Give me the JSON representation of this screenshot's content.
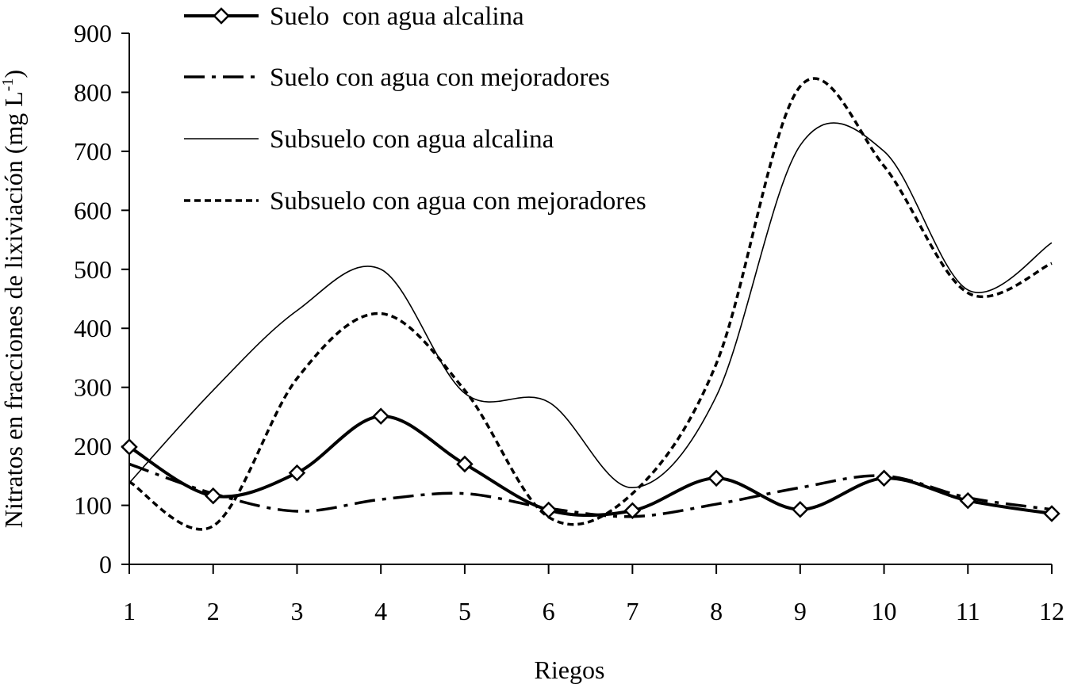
{
  "chart_data": {
    "type": "line",
    "title": "",
    "xlabel": "Riegos",
    "ylabel_main": "Nitratos en fracciones de lixiviación (mg L",
    "ylabel_sup": "-1",
    "ylabel_close": ")",
    "ylim": [
      0,
      900
    ],
    "yticks": [
      0,
      100,
      200,
      300,
      400,
      500,
      600,
      700,
      800,
      900
    ],
    "categories": [
      "1",
      "2",
      "3",
      "4",
      "5",
      "6",
      "7",
      "8",
      "9",
      "10",
      "11",
      "12"
    ],
    "grid": false,
    "legend_position": "top",
    "series": [
      {
        "name": "Suelo  con agua alcalina",
        "style": "solid-bold-diamond",
        "values": [
          199,
          116,
          155,
          251,
          170,
          92,
          91,
          146,
          93,
          146,
          108,
          86
        ]
      },
      {
        "name": "Suelo con agua con mejoradores",
        "style": "dash-dot",
        "values": [
          170,
          120,
          90,
          110,
          120,
          95,
          81,
          102,
          130,
          150,
          113,
          93
        ]
      },
      {
        "name": "Subsuelo con agua alcalina",
        "style": "thin-solid",
        "values": [
          138,
          295,
          430,
          500,
          290,
          275,
          130,
          285,
          710,
          700,
          465,
          545
        ]
      },
      {
        "name": "Subsuelo con agua con mejoradores",
        "style": "short-dash",
        "values": [
          140,
          65,
          315,
          425,
          295,
          80,
          120,
          340,
          810,
          675,
          460,
          510
        ]
      }
    ]
  }
}
